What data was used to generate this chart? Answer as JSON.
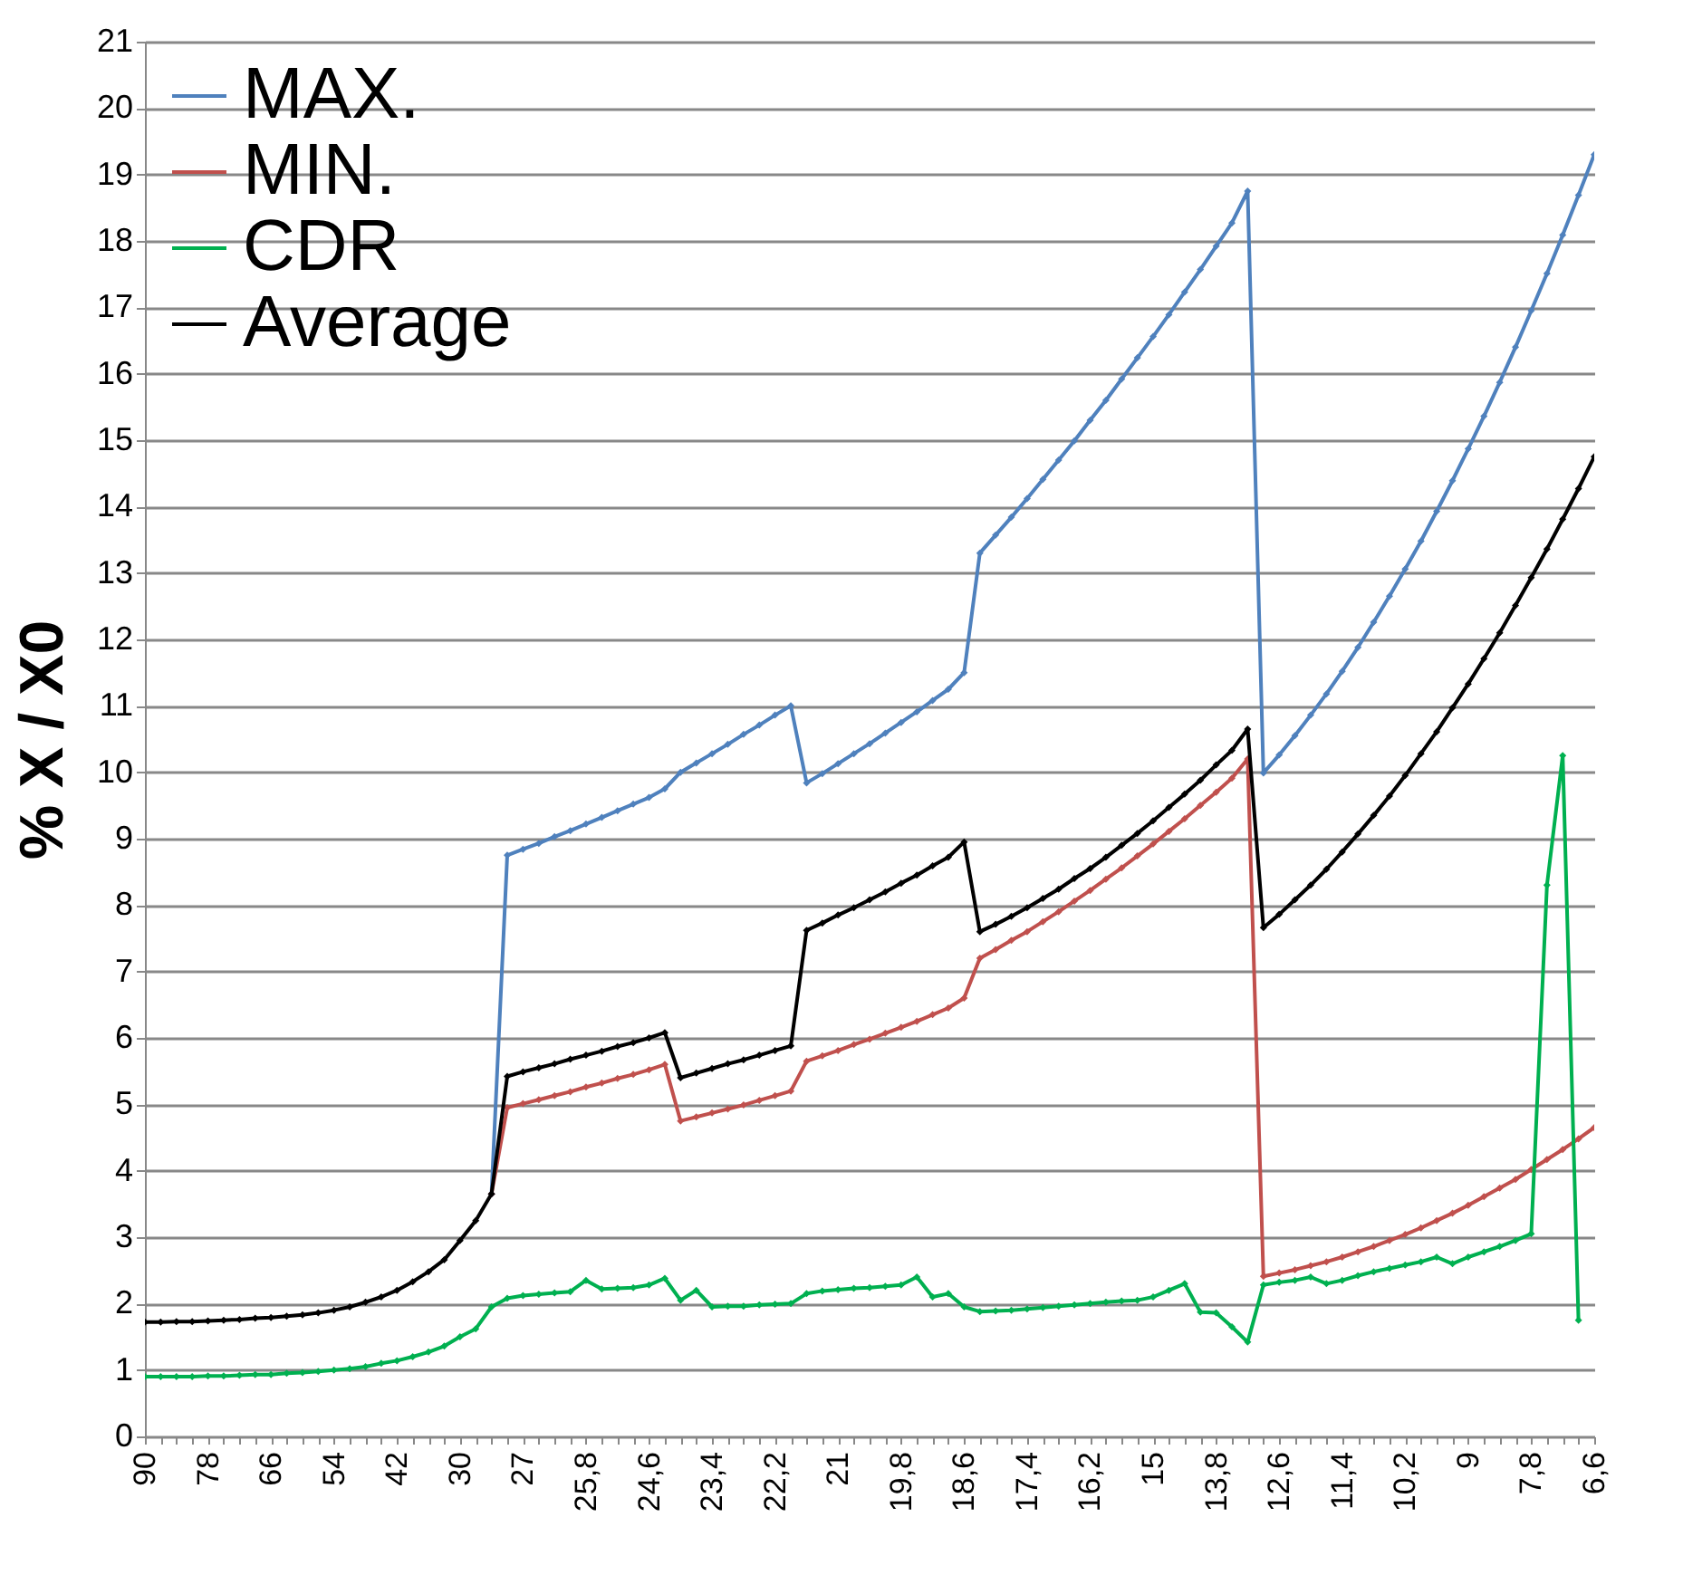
{
  "chart_data": {
    "type": "line",
    "ylabel": "% X / X0",
    "categories": [
      "90",
      null,
      null,
      null,
      "78",
      null,
      null,
      null,
      "66",
      null,
      null,
      null,
      "54",
      null,
      null,
      null,
      "42",
      null,
      null,
      null,
      "30",
      null,
      null,
      null,
      "27",
      null,
      null,
      null,
      "25,8",
      null,
      null,
      null,
      "24,6",
      null,
      null,
      null,
      "23,4",
      null,
      null,
      null,
      "22,2",
      null,
      null,
      null,
      "21",
      null,
      null,
      null,
      "19,8",
      null,
      null,
      null,
      "18,6",
      null,
      null,
      null,
      "17,4",
      null,
      null,
      null,
      "16,2",
      null,
      null,
      null,
      "15",
      null,
      null,
      null,
      "13,8",
      null,
      null,
      null,
      "12,6",
      null,
      null,
      null,
      "11,4",
      null,
      null,
      null,
      "10,2",
      null,
      null,
      null,
      "9",
      null,
      null,
      null,
      "7,8",
      null,
      null,
      null,
      "6,6"
    ],
    "series": [
      {
        "name": "MAX.",
        "color": "#4f81bd",
        "values": [
          null,
          null,
          null,
          null,
          null,
          null,
          null,
          null,
          null,
          null,
          null,
          null,
          null,
          null,
          null,
          null,
          null,
          null,
          null,
          null,
          null,
          null,
          3.65,
          8.75,
          8.84,
          8.93,
          9.03,
          9.12,
          9.22,
          9.32,
          9.42,
          9.52,
          9.62,
          9.75,
          10.0,
          10.14,
          10.28,
          10.42,
          10.57,
          10.71,
          10.86,
          11.0,
          9.84,
          9.98,
          10.13,
          10.28,
          10.43,
          10.59,
          10.75,
          10.91,
          11.08,
          11.25,
          11.5,
          13.3,
          13.57,
          13.84,
          14.12,
          14.41,
          14.7,
          14.99,
          15.3,
          15.6,
          15.92,
          16.24,
          16.56,
          16.89,
          17.23,
          17.57,
          17.92,
          18.27,
          18.75,
          9.99,
          10.26,
          10.55,
          10.86,
          11.18,
          11.52,
          11.88,
          12.26,
          12.65,
          13.06,
          13.48,
          13.93,
          14.39,
          14.87,
          15.36,
          15.87,
          16.4,
          16.95,
          17.51,
          18.09,
          18.69,
          19.3
        ]
      },
      {
        "name": "MIN.",
        "color": "#c0504d",
        "values": [
          null,
          null,
          null,
          null,
          null,
          null,
          null,
          null,
          null,
          null,
          null,
          null,
          null,
          null,
          null,
          null,
          null,
          null,
          null,
          null,
          null,
          null,
          3.65,
          4.95,
          5.01,
          5.07,
          5.13,
          5.19,
          5.26,
          5.32,
          5.39,
          5.45,
          5.52,
          5.6,
          4.75,
          4.81,
          4.87,
          4.93,
          4.99,
          5.06,
          5.13,
          5.2,
          5.65,
          5.73,
          5.81,
          5.9,
          5.98,
          6.07,
          6.16,
          6.25,
          6.35,
          6.45,
          6.6,
          7.2,
          7.33,
          7.47,
          7.6,
          7.75,
          7.9,
          8.06,
          8.22,
          8.39,
          8.56,
          8.74,
          8.92,
          9.11,
          9.3,
          9.5,
          9.7,
          9.91,
          10.2,
          2.41,
          2.46,
          2.51,
          2.57,
          2.63,
          2.7,
          2.78,
          2.86,
          2.95,
          3.04,
          3.14,
          3.25,
          3.36,
          3.48,
          3.61,
          3.74,
          3.87,
          4.02,
          4.17,
          4.32,
          4.48,
          4.65
        ]
      },
      {
        "name": "CDR",
        "color": "#00b050",
        "values": [
          0.9,
          0.9,
          0.9,
          0.9,
          0.91,
          0.91,
          0.92,
          0.93,
          0.93,
          0.95,
          0.96,
          0.98,
          1.0,
          1.02,
          1.05,
          1.1,
          1.14,
          1.2,
          1.27,
          1.36,
          1.5,
          1.62,
          1.95,
          2.08,
          2.12,
          2.14,
          2.16,
          2.18,
          2.35,
          2.22,
          2.23,
          2.24,
          2.28,
          2.38,
          2.05,
          2.2,
          1.95,
          1.96,
          1.96,
          1.98,
          1.99,
          2.0,
          2.15,
          2.19,
          2.21,
          2.23,
          2.24,
          2.26,
          2.28,
          2.4,
          2.1,
          2.15,
          1.95,
          1.88,
          1.89,
          1.9,
          1.92,
          1.94,
          1.96,
          1.98,
          2.0,
          2.02,
          2.04,
          2.05,
          2.1,
          2.2,
          2.3,
          1.87,
          1.86,
          1.65,
          1.42,
          2.28,
          2.32,
          2.35,
          2.4,
          2.3,
          2.35,
          2.42,
          2.48,
          2.53,
          2.58,
          2.63,
          2.7,
          2.6,
          2.7,
          2.78,
          2.86,
          2.95,
          3.05,
          8.3,
          10.25,
          1.75,
          null
        ]
      },
      {
        "name": "Average",
        "color": "#000000",
        "values": [
          1.72,
          1.72,
          1.73,
          1.73,
          1.74,
          1.75,
          1.76,
          1.78,
          1.79,
          1.81,
          1.83,
          1.86,
          1.9,
          1.95,
          2.02,
          2.1,
          2.2,
          2.33,
          2.48,
          2.66,
          2.95,
          3.25,
          3.65,
          5.42,
          5.49,
          5.55,
          5.61,
          5.68,
          5.74,
          5.8,
          5.87,
          5.93,
          6.0,
          6.08,
          5.4,
          5.47,
          5.54,
          5.61,
          5.67,
          5.74,
          5.81,
          5.88,
          7.62,
          7.73,
          7.85,
          7.96,
          8.08,
          8.2,
          8.33,
          8.45,
          8.59,
          8.72,
          8.95,
          7.6,
          7.71,
          7.83,
          7.96,
          8.1,
          8.24,
          8.4,
          8.55,
          8.72,
          8.9,
          9.08,
          9.27,
          9.47,
          9.67,
          9.88,
          10.11,
          10.33,
          10.65,
          7.66,
          7.86,
          8.08,
          8.3,
          8.54,
          8.8,
          9.07,
          9.35,
          9.64,
          9.95,
          10.28,
          10.61,
          10.97,
          11.33,
          11.71,
          12.1,
          12.51,
          12.93,
          13.36,
          13.81,
          14.27,
          14.75
        ]
      }
    ],
    "ylim": [
      0,
      21
    ],
    "yticks": [
      0,
      1,
      2,
      3,
      4,
      5,
      6,
      7,
      8,
      9,
      10,
      11,
      12,
      13,
      14,
      15,
      16,
      17,
      18,
      19,
      20,
      21
    ],
    "grid": "y",
    "legend": "top left",
    "marker": "diamond",
    "line_style": "solid"
  }
}
